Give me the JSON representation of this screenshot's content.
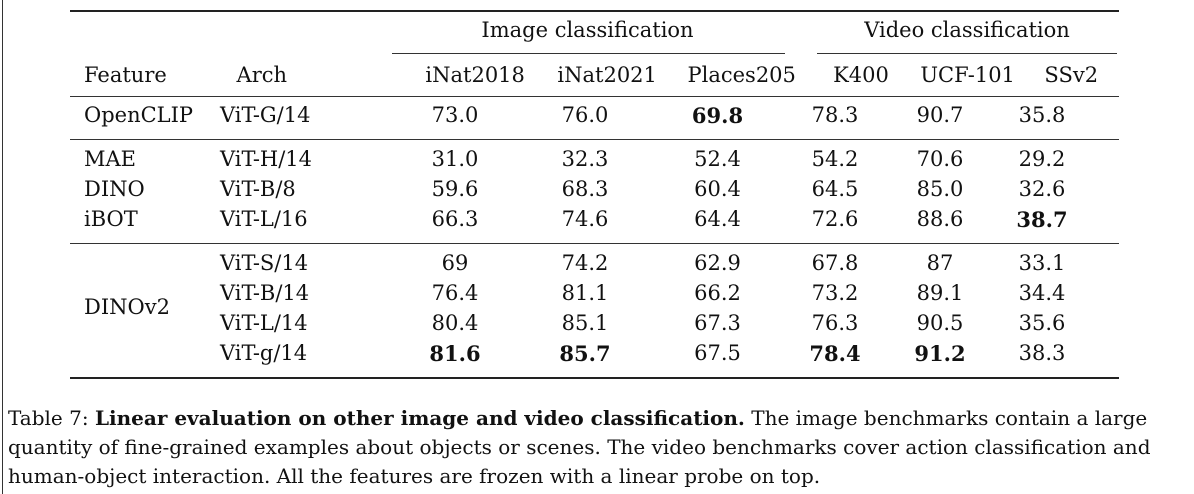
{
  "table": {
    "group_headers": [
      "Image classification",
      "Video classification"
    ],
    "column_headers": [
      "Feature",
      "Arch",
      "iNat2018",
      "iNat2021",
      "Places205",
      "K400",
      "UCF-101",
      "SSv2"
    ],
    "rows": [
      {
        "feature": "OpenCLIP",
        "arch": "ViT-G/14",
        "values": [
          "73.0",
          "76.0",
          "69.8",
          "78.3",
          "90.7",
          "35.8"
        ],
        "bold": [
          false,
          false,
          true,
          false,
          false,
          false
        ]
      },
      {
        "feature": "MAE",
        "arch": "ViT-H/14",
        "values": [
          "31.0",
          "32.3",
          "52.4",
          "54.2",
          "70.6",
          "29.2"
        ],
        "bold": [
          false,
          false,
          false,
          false,
          false,
          false
        ]
      },
      {
        "feature": "DINO",
        "arch": "ViT-B/8",
        "values": [
          "59.6",
          "68.3",
          "60.4",
          "64.5",
          "85.0",
          "32.6"
        ],
        "bold": [
          false,
          false,
          false,
          false,
          false,
          false
        ]
      },
      {
        "feature": "iBOT",
        "arch": "ViT-L/16",
        "values": [
          "66.3",
          "74.6",
          "64.4",
          "72.6",
          "88.6",
          "38.7"
        ],
        "bold": [
          false,
          false,
          false,
          false,
          false,
          true
        ]
      },
      {
        "feature": "DINOv2",
        "arch": "ViT-S/14",
        "values": [
          "69",
          "74.2",
          "62.9",
          "67.8",
          "87",
          "33.1"
        ],
        "bold": [
          false,
          false,
          false,
          false,
          false,
          false
        ]
      },
      {
        "feature": "",
        "arch": "ViT-B/14",
        "values": [
          "76.4",
          "81.1",
          "66.2",
          "73.2",
          "89.1",
          "34.4"
        ],
        "bold": [
          false,
          false,
          false,
          false,
          false,
          false
        ]
      },
      {
        "feature": "",
        "arch": "ViT-L/14",
        "values": [
          "80.4",
          "85.1",
          "67.3",
          "76.3",
          "90.5",
          "35.6"
        ],
        "bold": [
          false,
          false,
          false,
          false,
          false,
          false
        ]
      },
      {
        "feature": "",
        "arch": "ViT-g/14",
        "values": [
          "81.6",
          "85.7",
          "67.5",
          "78.4",
          "91.2",
          "38.3"
        ],
        "bold": [
          true,
          true,
          false,
          true,
          true,
          false
        ]
      }
    ]
  },
  "caption": {
    "label": "Table 7:",
    "title": "Linear evaluation on other image and video classification.",
    "body": "The image benchmarks contain a large quantity of fine-grained examples about objects or scenes.  The video benchmarks cover action classification and human-object interaction. All the features are frozen with a linear probe on top."
  }
}
